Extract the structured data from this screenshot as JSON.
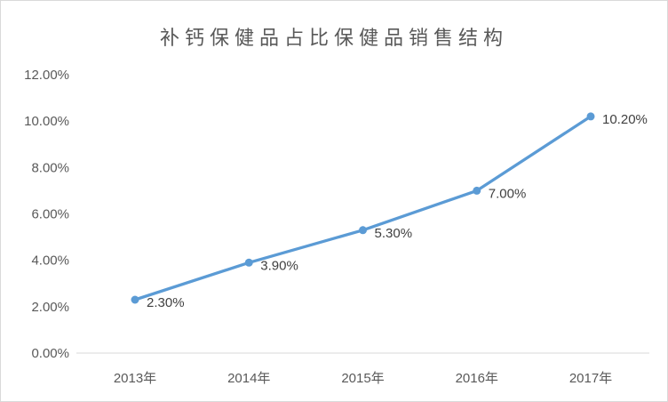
{
  "chart_data": {
    "type": "line",
    "title": "补钙保健品占比保健品销售结构",
    "categories": [
      "2013年",
      "2014年",
      "2015年",
      "2016年",
      "2017年"
    ],
    "series": [
      {
        "values": [
          2.3,
          3.9,
          5.3,
          7.0,
          10.2
        ],
        "point_labels": [
          "2.30%",
          "3.90%",
          "5.30%",
          "7.00%",
          "10.20%"
        ],
        "color": "#5B9BD5",
        "marker": "circle"
      }
    ],
    "xlabel": "",
    "ylabel": "",
    "ylim": [
      0,
      12
    ],
    "y_ticks": [
      {
        "value": 0,
        "label": "0.00%"
      },
      {
        "value": 2,
        "label": "2.00%"
      },
      {
        "value": 4,
        "label": "4.00%"
      },
      {
        "value": 6,
        "label": "6.00%"
      },
      {
        "value": 8,
        "label": "8.00%"
      },
      {
        "value": 10,
        "label": "10.00%"
      },
      {
        "value": 12,
        "label": "12.00%"
      }
    ],
    "grid": false,
    "legend": "none",
    "colors": {
      "series_line": "#5B9BD5",
      "title_text": "#595959",
      "axis_tick_text": "#595959",
      "data_label_text": "#404040",
      "axis_line": "#D9D9D9",
      "chart_border": "#D9D9D9",
      "background": "#FFFFFF"
    }
  }
}
